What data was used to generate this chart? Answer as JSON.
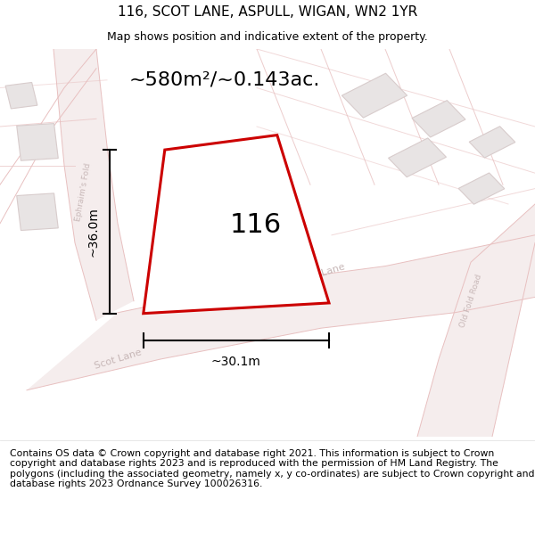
{
  "title": "116, SCOT LANE, ASPULL, WIGAN, WN2 1YR",
  "subtitle": "Map shows position and indicative extent of the property.",
  "area_label": "~580m²/~0.143ac.",
  "number_label": "116",
  "width_label": "~30.1m",
  "height_label": "~36.0m",
  "footer": "Contains OS data © Crown copyright and database right 2021. This information is subject to Crown copyright and database rights 2023 and is reproduced with the permission of HM Land Registry. The polygons (including the associated geometry, namely x, y co-ordinates) are subject to Crown copyright and database rights 2023 Ordnance Survey 100026316.",
  "bg_color": "#ffffff",
  "road_fill": "#f5eded",
  "road_line_color": "#e8c0c0",
  "building_fill": "#e8e4e4",
  "building_edge": "#d8cccc",
  "plot_color": "#cc0000",
  "title_fontsize": 11,
  "subtitle_fontsize": 9,
  "area_fontsize": 16,
  "number_fontsize": 22,
  "dim_fontsize": 10,
  "road_label_fontsize": 8,
  "footer_fontsize": 7.8,
  "road_label_color": "#c8b8b8"
}
